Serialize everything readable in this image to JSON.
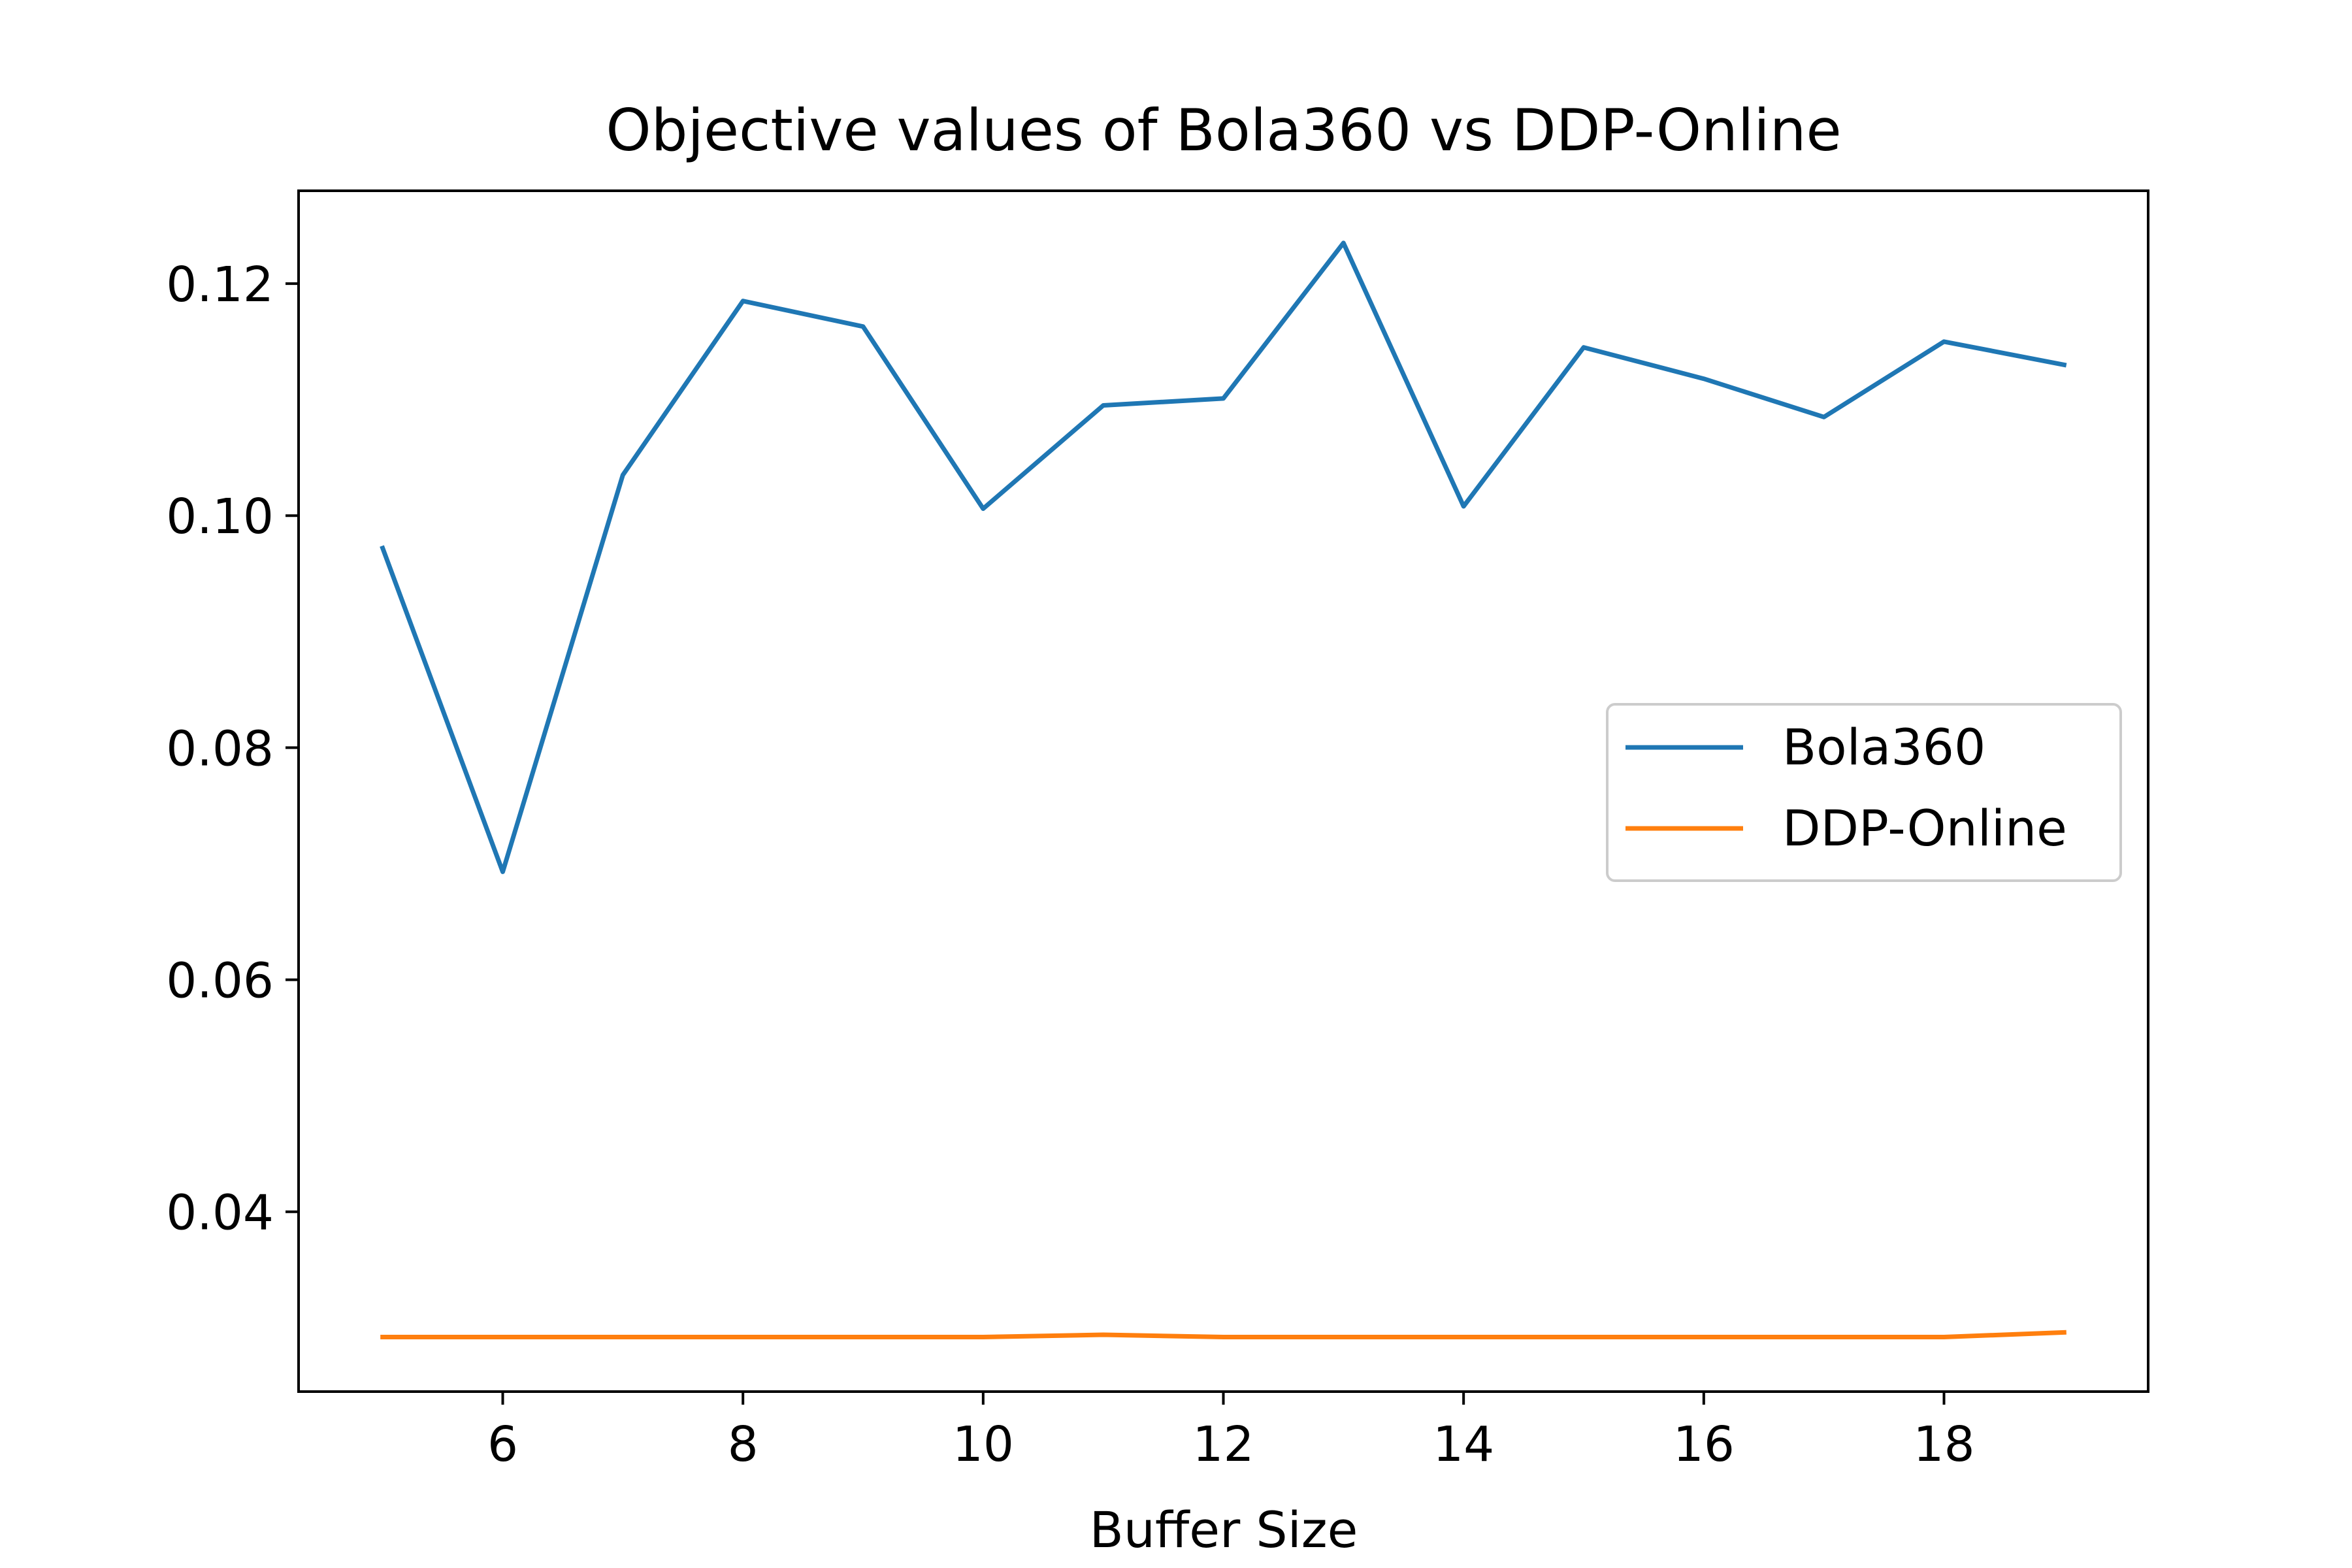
{
  "chart_data": {
    "type": "line",
    "title": "Objective values of Bola360 vs DDP-Online",
    "xlabel": "Buffer Size",
    "ylabel": "",
    "xlim": [
      4.3,
      19.7
    ],
    "ylim": [
      0.0245,
      0.128
    ],
    "xticks": [
      6,
      8,
      10,
      12,
      14,
      16,
      18
    ],
    "xtick_labels": [
      "6",
      "8",
      "10",
      "12",
      "14",
      "16",
      "18"
    ],
    "yticks": [
      0.04,
      0.06,
      0.08,
      0.1,
      0.12
    ],
    "ytick_labels": [
      "0.04",
      "0.06",
      "0.08",
      "0.10",
      "0.12"
    ],
    "x": [
      5,
      6,
      7,
      8,
      9,
      10,
      11,
      12,
      13,
      14,
      15,
      16,
      17,
      18,
      19
    ],
    "series": [
      {
        "name": "Bola360",
        "color": "#1f77b4",
        "values": [
          0.0972,
          0.0693,
          0.1035,
          0.1185,
          0.1163,
          0.1006,
          0.1095,
          0.1101,
          0.1235,
          0.1008,
          0.1145,
          0.1118,
          0.1085,
          0.115,
          0.113
        ]
      },
      {
        "name": "DDP-Online",
        "color": "#ff7f0e",
        "values": [
          0.0292,
          0.0292,
          0.0292,
          0.0292,
          0.0292,
          0.0292,
          0.0294,
          0.0292,
          0.0292,
          0.0292,
          0.0292,
          0.0292,
          0.0292,
          0.0292,
          0.0296
        ]
      }
    ],
    "grid": false,
    "legend_position": "center-right"
  }
}
